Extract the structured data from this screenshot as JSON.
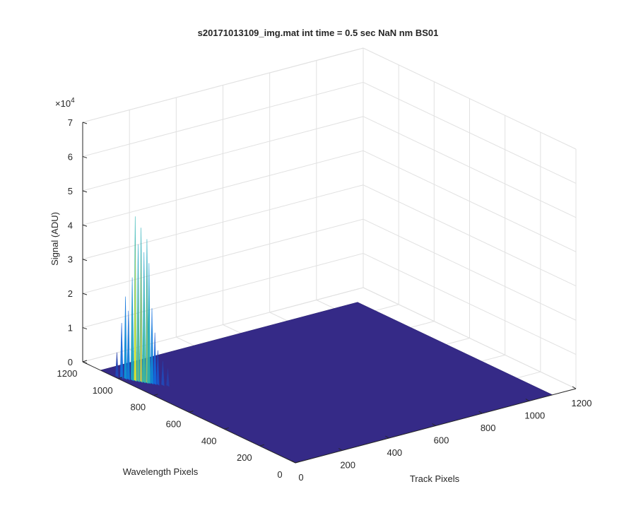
{
  "chart_data": {
    "type": "surface",
    "title": "s20171013109_img.mat int time = 0.5 sec  NaN nm BS01",
    "xlabel": "Track Pixels",
    "ylabel": "Wavelength Pixels",
    "zlabel": "Signal (ADU)",
    "z_exponent_label": "×10",
    "z_exponent_power": "4",
    "xlim": [
      0,
      1200
    ],
    "ylim": [
      0,
      1200
    ],
    "zlim": [
      0,
      70000
    ],
    "x_ticks": [
      "0",
      "200",
      "400",
      "600",
      "800",
      "1000",
      "1200"
    ],
    "y_ticks": [
      "0",
      "200",
      "400",
      "600",
      "800",
      "1000",
      "1200"
    ],
    "z_ticks": [
      "0",
      "1",
      "2",
      "3",
      "4",
      "5",
      "6",
      "7"
    ],
    "grid": true,
    "colormap": "parula",
    "surface_color": "#352a87",
    "data_extent": {
      "x": [
        0,
        1100
      ],
      "y": [
        0,
        1100
      ]
    },
    "baseline": 0,
    "peaks": [
      {
        "x": 10,
        "y": 1020,
        "z": 7000
      },
      {
        "x": 15,
        "y": 1000,
        "z": 16000
      },
      {
        "x": 20,
        "y": 985,
        "z": 24000
      },
      {
        "x": 25,
        "y": 975,
        "z": 20000
      },
      {
        "x": 30,
        "y": 960,
        "z": 30000
      },
      {
        "x": 35,
        "y": 950,
        "z": 48000
      },
      {
        "x": 40,
        "y": 940,
        "z": 40000
      },
      {
        "x": 45,
        "y": 930,
        "z": 45000
      },
      {
        "x": 50,
        "y": 920,
        "z": 38000
      },
      {
        "x": 55,
        "y": 910,
        "z": 42000
      },
      {
        "x": 60,
        "y": 905,
        "z": 35000
      },
      {
        "x": 65,
        "y": 895,
        "z": 22000
      },
      {
        "x": 70,
        "y": 885,
        "z": 15000
      },
      {
        "x": 75,
        "y": 875,
        "z": 10000
      },
      {
        "x": 85,
        "y": 860,
        "z": 7000
      },
      {
        "x": 95,
        "y": 845,
        "z": 5000
      }
    ]
  }
}
